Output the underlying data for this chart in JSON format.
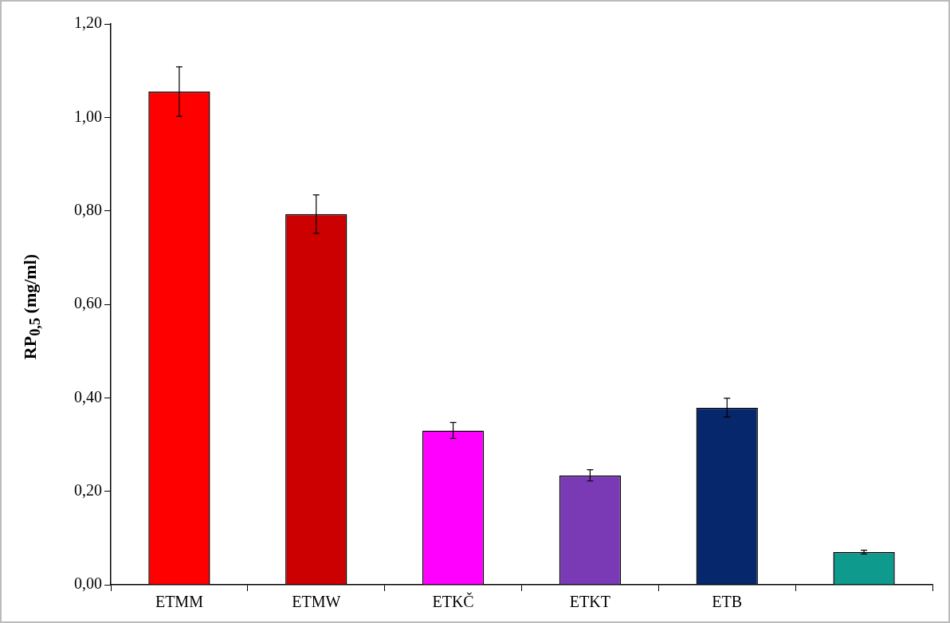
{
  "chart_data": {
    "type": "bar",
    "ylabel": "RP$_{0,5}$ (mg/ml)",
    "categories": [
      "ETMM",
      "ETMW",
      "ETKČ",
      "ETKT",
      "ETB",
      null
    ],
    "values": [
      1.055,
      0.793,
      0.33,
      0.234,
      0.379,
      0.07
    ],
    "errors": [
      0.053,
      0.041,
      0.017,
      0.012,
      0.02,
      0.004
    ],
    "colors": [
      "#ff0000",
      "#cc0000",
      "#ff00ff",
      "#7a3ab5",
      "#06276b",
      "#0f9a8e"
    ],
    "ylim": [
      0,
      1.2
    ],
    "yticks": [
      {
        "value": 0,
        "label": "0,00"
      },
      {
        "value": 0.2,
        "label": "0,20"
      },
      {
        "value": 0.4,
        "label": "0,40"
      },
      {
        "value": 0.6,
        "label": "0,60"
      },
      {
        "value": 0.8,
        "label": "0,80"
      },
      {
        "value": 1,
        "label": "1,00"
      },
      {
        "value": 1.2,
        "label": "1,20"
      }
    ],
    "grid": false,
    "legend": false
  }
}
